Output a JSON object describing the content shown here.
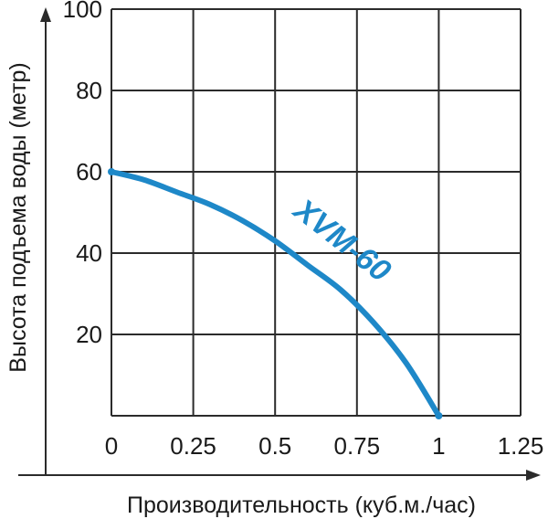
{
  "chart_data": {
    "type": "line",
    "title": "",
    "xlabel": "Производительность (куб.м./час)",
    "ylabel": "Высота подъема воды (метр)",
    "xlim": [
      0,
      1.25
    ],
    "ylim": [
      0,
      100
    ],
    "x_ticks": [
      "0",
      "0.25",
      "0.5",
      "0.75",
      "1",
      "1.25"
    ],
    "y_ticks": [
      "20",
      "40",
      "60",
      "80",
      "100"
    ],
    "grid": true,
    "series": [
      {
        "name": "XVM-60",
        "color": "#1e88c8",
        "x": [
          0,
          0.1,
          0.2,
          0.3,
          0.4,
          0.5,
          0.6,
          0.7,
          0.8,
          0.9,
          1.0
        ],
        "y": [
          60,
          58,
          55,
          52,
          48,
          43,
          37,
          31,
          23,
          13,
          0
        ]
      }
    ]
  }
}
